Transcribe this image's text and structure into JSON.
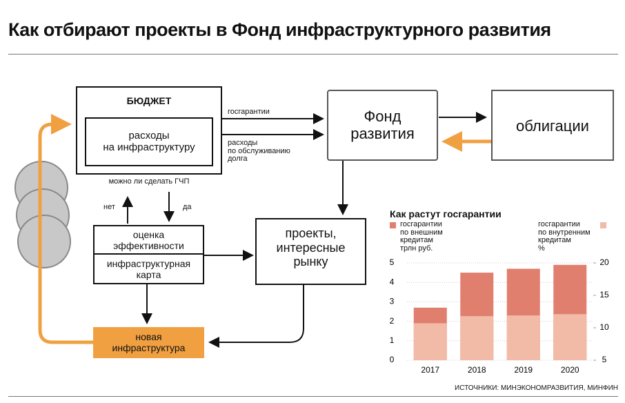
{
  "title": "Как отбирают проекты в Фонд инфраструктурного развития",
  "nodes": {
    "budget": "БЮДЖЕТ",
    "spending": "расходы\nна инфраструктуру",
    "fund": "Фонд\nразвития",
    "bonds": "облигации",
    "projects": "проекты,\nинтересные\nрынку",
    "assessment": "оценка\nэффективности",
    "map": "инфраструктурная\nкарта",
    "new_infra": "новая\nинфраструктура"
  },
  "edges": {
    "guarantees": "госгарантии",
    "debt_service": "расходы\nпо обслуживанию\nдолга",
    "ppp_question": "можно ли сделать ГЧП",
    "no": "нет",
    "yes": "да"
  },
  "source": "ИСТОЧНИКИ: МИНЭКОНОМРАЗВИТИЯ, МИНФИН",
  "chart_data": {
    "type": "bar",
    "title": "Как растут госгарантии",
    "categories": [
      "2017",
      "2018",
      "2019",
      "2020"
    ],
    "series": [
      {
        "name": "госгарантии\nпо внешним\nкредитам\nтрлн руб.",
        "color": "#e07f6e",
        "values": [
          2.7,
          4.5,
          4.7,
          4.9
        ]
      },
      {
        "name": "госгарантии\nпо внутренним\nкредитам\n%",
        "color": "#f2bba8",
        "axis": "y2",
        "values": [
          10.7,
          11.8,
          11.9,
          12.1
        ]
      }
    ],
    "ylim": [
      0,
      5
    ],
    "yticks": [
      0,
      1,
      2,
      3,
      4,
      5
    ],
    "y2lim": [
      5,
      20
    ],
    "y2ticks": [
      5,
      10,
      15,
      20
    ]
  }
}
